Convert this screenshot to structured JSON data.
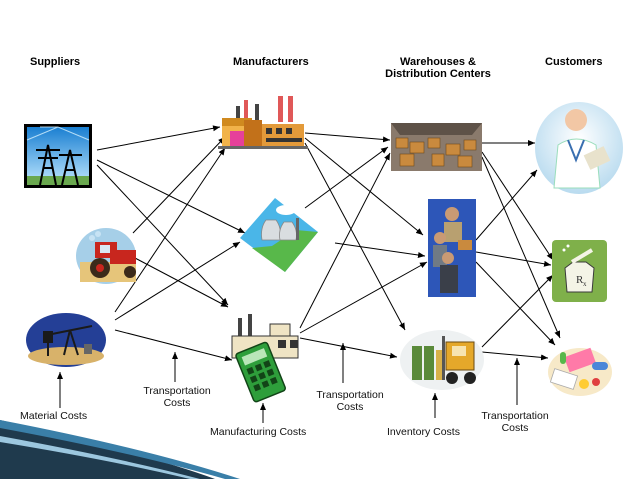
{
  "headers": {
    "suppliers": "Suppliers",
    "manufacturers": "Manufacturers",
    "warehouses_line1": "Warehouses &",
    "warehouses_line2": "Distribution Centers",
    "customers": "Customers"
  },
  "cost_labels": {
    "material": "Material Costs",
    "transport1_line1": "Transportation",
    "transport1_line2": "Costs",
    "manufacturing": "Manufacturing Costs",
    "transport2_line1": "Transportation",
    "transport2_line2": "Costs",
    "inventory": "Inventory Costs",
    "transport3_line1": "Transportation",
    "transport3_line2": "Costs"
  },
  "icons": {
    "suppliers": [
      "power-tower-icon",
      "tractor-icon",
      "oil-pump-icon"
    ],
    "manufacturers": [
      "factory-icon",
      "power-plant-icon",
      "calculator-factory-icon"
    ],
    "warehouses": [
      "warehouse-boxes-icon",
      "workers-icon",
      "forklift-icon"
    ],
    "customers": [
      "doctor-icon",
      "pharmacy-icon",
      "pills-icon"
    ]
  },
  "colors": {
    "arrow": "#000000",
    "accent_dark": "#1f3a4d",
    "accent_blue": "#3a7fa8"
  }
}
